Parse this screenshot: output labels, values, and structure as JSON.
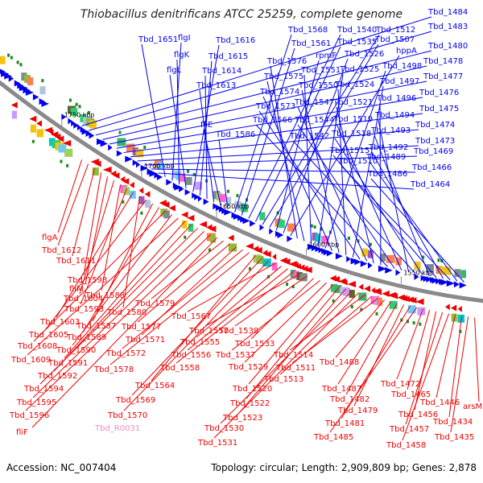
{
  "title": "Thiobacillus denitrificans ATCC 25259, complete genome",
  "footer": {
    "accession": "Accession: NC_007404",
    "stats": "Topology: circular; Length: 2,909,809 bp; Genes: 2,878"
  },
  "colors": {
    "forward": "#0000ee",
    "reverse": "#ee0000",
    "pseudo": "#ee88cc",
    "backbone": "#8a8a8a"
  },
  "kbp_labels": [
    "1750 kbp",
    "1700 kbp",
    "1650 kbp",
    "1600 kbp",
    "1550 kbp"
  ],
  "forward_genes": [
    "Tbd_1484",
    "Tbd_1483",
    "Tbd_1480",
    "Tbd_1478",
    "Tbd_1477",
    "Tbd_1476",
    "Tbd_1475",
    "Tbd_1474",
    "Tbd_1473",
    "Tbd_1469",
    "Tbd_1466",
    "Tbd_1464",
    "Tbd_1651",
    "flgI",
    "flgK",
    "flgL",
    "Tbd_1616",
    "Tbd_1615",
    "Tbd_1614",
    "Tbd_1613",
    "fliE",
    "Tbd_1586",
    "Tbd_1568",
    "Tbd_1561",
    "Tbd_1540",
    "Tbd_1535",
    "Tbd_1512",
    "Tbd_1507",
    "rpmF",
    "Tbd_1526",
    "hppA",
    "Tbd_1576",
    "Tbd_1575",
    "Tbd_1551",
    "Tbd_1525",
    "Tbd_1498",
    "Tbd_1574",
    "Tbd_1550",
    "Tbd_1524",
    "Tbd_1497",
    "Tbd_1573",
    "Tbd_1547",
    "Tbd_1521",
    "Tbd_1496",
    "Tbd_1566",
    "Tbd_1544",
    "Tbd_1519",
    "Tbd_1494",
    "Tbd_1542",
    "Tbd_1518",
    "Tbd_1493",
    "Tbd_1515",
    "Tbd_1492",
    "Tbd_1510",
    "Tbd_1489",
    "Tbd_1486"
  ],
  "reverse_genes": [
    "flgA",
    "Tbd_1612",
    "Tbd_1611",
    "Tbd_1598",
    "fliM",
    "Tbd_1604",
    "Tbd_1588",
    "Tbd_1593",
    "Tbd_1603",
    "Tbd_1580",
    "Tbd_1605",
    "Tbd_1587",
    "Tbd_1589",
    "Tbd_1608",
    "Tbd_1590",
    "Tbd_1609",
    "Tbd_1591",
    "Tbd_1592",
    "Tbd_1594",
    "Tbd_1595",
    "Tbd_1596",
    "fliF",
    "Tbd_1579",
    "Tbd_1577",
    "Tbd_1571",
    "Tbd_1572",
    "Tbd_1578",
    "Tbd_1564",
    "Tbd_1569",
    "Tbd_1570",
    "Tbd_1567",
    "Tbd_1555",
    "Tbd_1556",
    "Tbd_1558",
    "Tbd_1557",
    "Tbd_1539",
    "Tbd_1533",
    "Tbd_1537",
    "Tbd_1529",
    "Tbd_1520",
    "Tbd_1522",
    "Tbd_1523",
    "Tbd_1530",
    "Tbd_1531",
    "Tbd_1514",
    "Tbd_1513",
    "Tbd_1511",
    "Tbd_1488",
    "Tbd_1487",
    "Tbd_1482",
    "Tbd_1479",
    "Tbd_1481",
    "Tbd_1485",
    "Tbd_1472",
    "Tbd_1465",
    "Tbd_1456",
    "Tbd_1457",
    "Tbd_1458",
    "Tbd_1446",
    "Tbd_1434",
    "Tbd_1435",
    "arsM"
  ],
  "pseudo_genes": [
    "Tbd_R0031"
  ]
}
